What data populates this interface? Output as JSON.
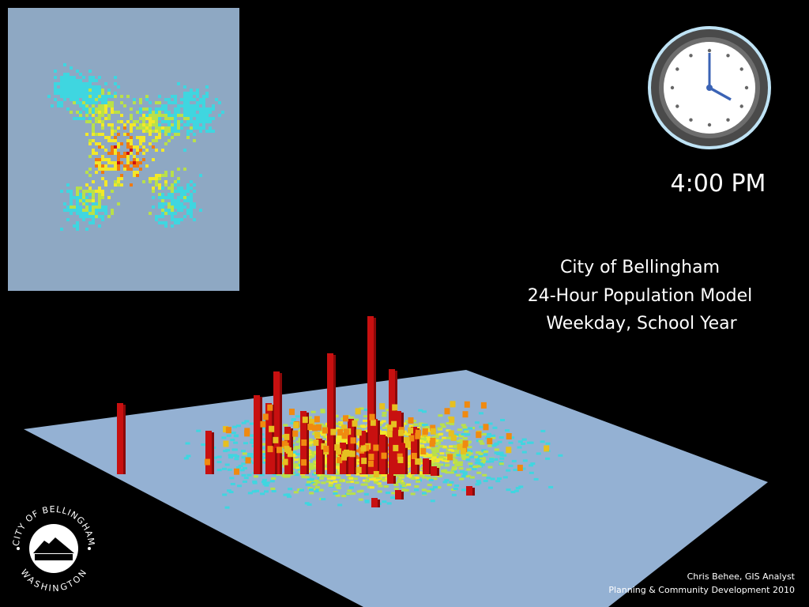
{
  "clock": {
    "time": "4:00 PM"
  },
  "title": {
    "lines": [
      "City of Bellingham",
      "24-Hour Population Model",
      "Weekday, School Year"
    ]
  },
  "logo": {
    "top": "CITY OF BELLINGHAM",
    "bottom": "WASHINGTON"
  },
  "credits": [
    "Chris Behee, GIS Analyst",
    "Planning & Community Development 2010"
  ]
}
